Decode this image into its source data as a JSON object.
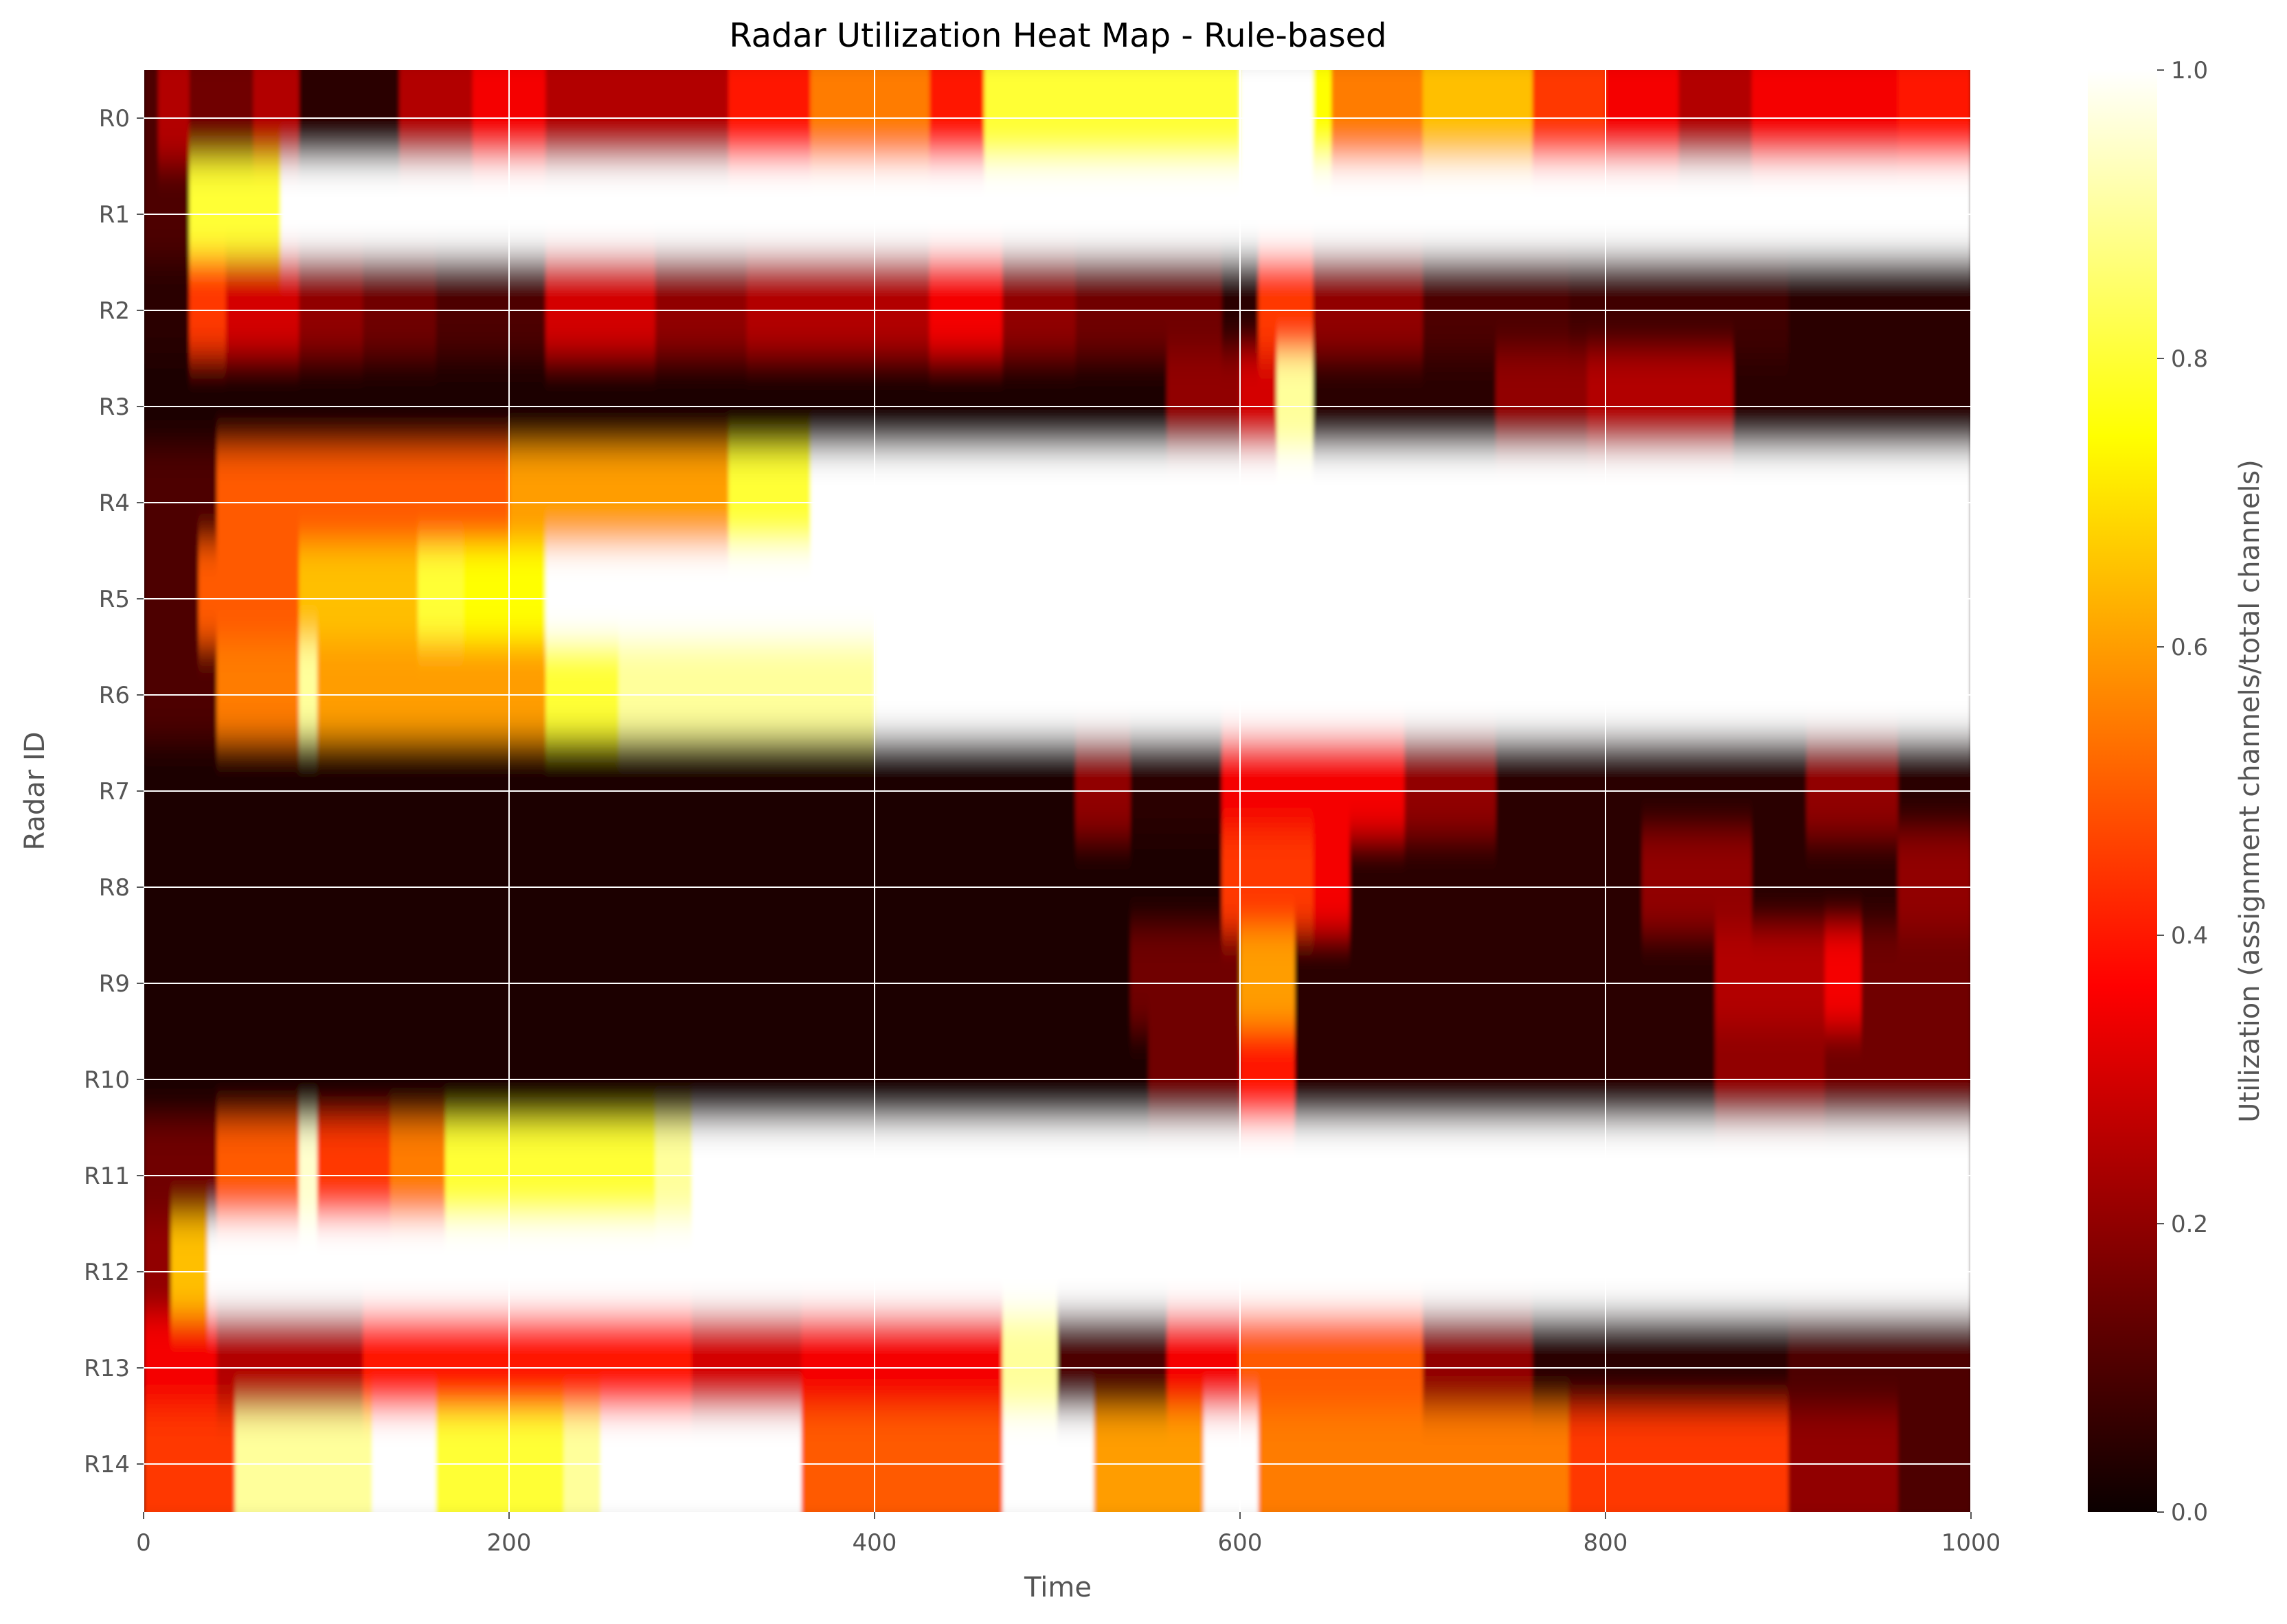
{
  "chart_data": {
    "type": "heatmap",
    "title": "Radar Utilization Heat Map - Rule-based",
    "xlabel": "Time",
    "ylabel": "Radar ID",
    "xlim": [
      0,
      1000
    ],
    "xticks": [
      "0",
      "200",
      "400",
      "600",
      "800",
      "1000"
    ],
    "xtick_values": [
      0,
      200,
      400,
      600,
      800,
      1000
    ],
    "rows": [
      "R0",
      "R1",
      "R2",
      "R3",
      "R4",
      "R5",
      "R6",
      "R7",
      "R8",
      "R9",
      "R10",
      "R11",
      "R12",
      "R13",
      "R14"
    ],
    "colorbar": {
      "label": "Utilization (assignment channels/total channels)",
      "range": [
        0,
        1
      ],
      "ticks": [
        "0.0",
        "0.2",
        "0.4",
        "0.6",
        "0.8",
        "1.0"
      ],
      "tick_values": [
        0,
        0.2,
        0.4,
        0.6,
        0.8,
        1.0
      ],
      "colormap": "hot"
    },
    "grid": true,
    "interpolation": "smooth",
    "segments": [
      [
        [
          0,
          8,
          0.1
        ],
        [
          8,
          25,
          0.25
        ],
        [
          25,
          60,
          0.15
        ],
        [
          60,
          85,
          0.25
        ],
        [
          85,
          140,
          0.05
        ],
        [
          140,
          180,
          0.25
        ],
        [
          180,
          220,
          0.35
        ],
        [
          220,
          320,
          0.25
        ],
        [
          320,
          365,
          0.4
        ],
        [
          365,
          430,
          0.55
        ],
        [
          430,
          460,
          0.4
        ],
        [
          460,
          600,
          0.8
        ],
        [
          600,
          640,
          1.0
        ],
        [
          640,
          650,
          0.75
        ],
        [
          650,
          700,
          0.55
        ],
        [
          700,
          760,
          0.65
        ],
        [
          760,
          800,
          0.45
        ],
        [
          800,
          840,
          0.35
        ],
        [
          840,
          880,
          0.25
        ],
        [
          880,
          960,
          0.35
        ],
        [
          960,
          1000,
          0.4
        ]
      ],
      [
        [
          0,
          25,
          0.1
        ],
        [
          25,
          75,
          0.8
        ],
        [
          75,
          1000,
          1.0
        ]
      ],
      [
        [
          0,
          25,
          0.05
        ],
        [
          25,
          45,
          0.45
        ],
        [
          45,
          85,
          0.3
        ],
        [
          85,
          120,
          0.2
        ],
        [
          120,
          160,
          0.15
        ],
        [
          160,
          220,
          0.1
        ],
        [
          220,
          280,
          0.3
        ],
        [
          280,
          330,
          0.2
        ],
        [
          330,
          430,
          0.25
        ],
        [
          430,
          470,
          0.35
        ],
        [
          470,
          510,
          0.2
        ],
        [
          510,
          590,
          0.15
        ],
        [
          590,
          610,
          0.05
        ],
        [
          610,
          640,
          0.45
        ],
        [
          640,
          700,
          0.2
        ],
        [
          700,
          780,
          0.1
        ],
        [
          780,
          900,
          0.08
        ],
        [
          900,
          1000,
          0.05
        ]
      ],
      [
        [
          0,
          560,
          0.03
        ],
        [
          560,
          600,
          0.2
        ],
        [
          600,
          620,
          0.3
        ],
        [
          620,
          640,
          0.9
        ],
        [
          640,
          740,
          0.05
        ],
        [
          740,
          790,
          0.2
        ],
        [
          790,
          870,
          0.25
        ],
        [
          870,
          1000,
          0.05
        ]
      ],
      [
        [
          0,
          40,
          0.1
        ],
        [
          40,
          200,
          0.5
        ],
        [
          200,
          320,
          0.6
        ],
        [
          320,
          365,
          0.8
        ],
        [
          365,
          1000,
          1.0
        ]
      ],
      [
        [
          0,
          30,
          0.1
        ],
        [
          30,
          85,
          0.5
        ],
        [
          85,
          150,
          0.65
        ],
        [
          150,
          175,
          0.8
        ],
        [
          175,
          220,
          0.75
        ],
        [
          220,
          1000,
          1.0
        ]
      ],
      [
        [
          0,
          40,
          0.1
        ],
        [
          40,
          85,
          0.55
        ],
        [
          85,
          95,
          0.9
        ],
        [
          95,
          220,
          0.6
        ],
        [
          220,
          260,
          0.8
        ],
        [
          260,
          400,
          0.9
        ],
        [
          400,
          1000,
          1.0
        ]
      ],
      [
        [
          0,
          510,
          0.03
        ],
        [
          510,
          540,
          0.2
        ],
        [
          540,
          590,
          0.05
        ],
        [
          590,
          660,
          0.35
        ],
        [
          660,
          690,
          0.35
        ],
        [
          690,
          740,
          0.2
        ],
        [
          740,
          910,
          0.05
        ],
        [
          910,
          960,
          0.2
        ],
        [
          960,
          1000,
          0.05
        ]
      ],
      [
        [
          0,
          590,
          0.03
        ],
        [
          590,
          640,
          0.45
        ],
        [
          640,
          660,
          0.35
        ],
        [
          660,
          820,
          0.05
        ],
        [
          820,
          880,
          0.2
        ],
        [
          880,
          960,
          0.05
        ],
        [
          960,
          1000,
          0.2
        ]
      ],
      [
        [
          0,
          540,
          0.03
        ],
        [
          540,
          600,
          0.15
        ],
        [
          600,
          630,
          0.6
        ],
        [
          630,
          860,
          0.05
        ],
        [
          860,
          920,
          0.25
        ],
        [
          920,
          940,
          0.35
        ],
        [
          940,
          1000,
          0.15
        ]
      ],
      [
        [
          0,
          550,
          0.03
        ],
        [
          550,
          600,
          0.15
        ],
        [
          600,
          630,
          0.4
        ],
        [
          630,
          860,
          0.05
        ],
        [
          860,
          920,
          0.2
        ],
        [
          920,
          1000,
          0.15
        ]
      ],
      [
        [
          0,
          40,
          0.15
        ],
        [
          40,
          85,
          0.5
        ],
        [
          85,
          95,
          0.95
        ],
        [
          95,
          135,
          0.45
        ],
        [
          135,
          165,
          0.55
        ],
        [
          165,
          280,
          0.8
        ],
        [
          280,
          300,
          0.9
        ],
        [
          300,
          1000,
          1.0
        ]
      ],
      [
        [
          0,
          15,
          0.2
        ],
        [
          15,
          35,
          0.65
        ],
        [
          35,
          1000,
          1.0
        ]
      ],
      [
        [
          0,
          40,
          0.35
        ],
        [
          40,
          120,
          0.25
        ],
        [
          120,
          300,
          0.4
        ],
        [
          300,
          360,
          0.3
        ],
        [
          360,
          470,
          0.35
        ],
        [
          470,
          500,
          0.9
        ],
        [
          500,
          560,
          0.1
        ],
        [
          560,
          600,
          0.35
        ],
        [
          600,
          700,
          0.5
        ],
        [
          700,
          760,
          0.2
        ],
        [
          760,
          900,
          0.05
        ],
        [
          900,
          1000,
          0.1
        ]
      ],
      [
        [
          0,
          50,
          0.45
        ],
        [
          50,
          125,
          0.9
        ],
        [
          125,
          160,
          1.0
        ],
        [
          160,
          230,
          0.8
        ],
        [
          230,
          250,
          0.9
        ],
        [
          250,
          360,
          1.0
        ],
        [
          360,
          470,
          0.5
        ],
        [
          470,
          520,
          1.0
        ],
        [
          520,
          580,
          0.6
        ],
        [
          580,
          610,
          1.0
        ],
        [
          610,
          780,
          0.55
        ],
        [
          780,
          900,
          0.45
        ],
        [
          900,
          960,
          0.2
        ],
        [
          960,
          1000,
          0.1
        ]
      ]
    ]
  }
}
